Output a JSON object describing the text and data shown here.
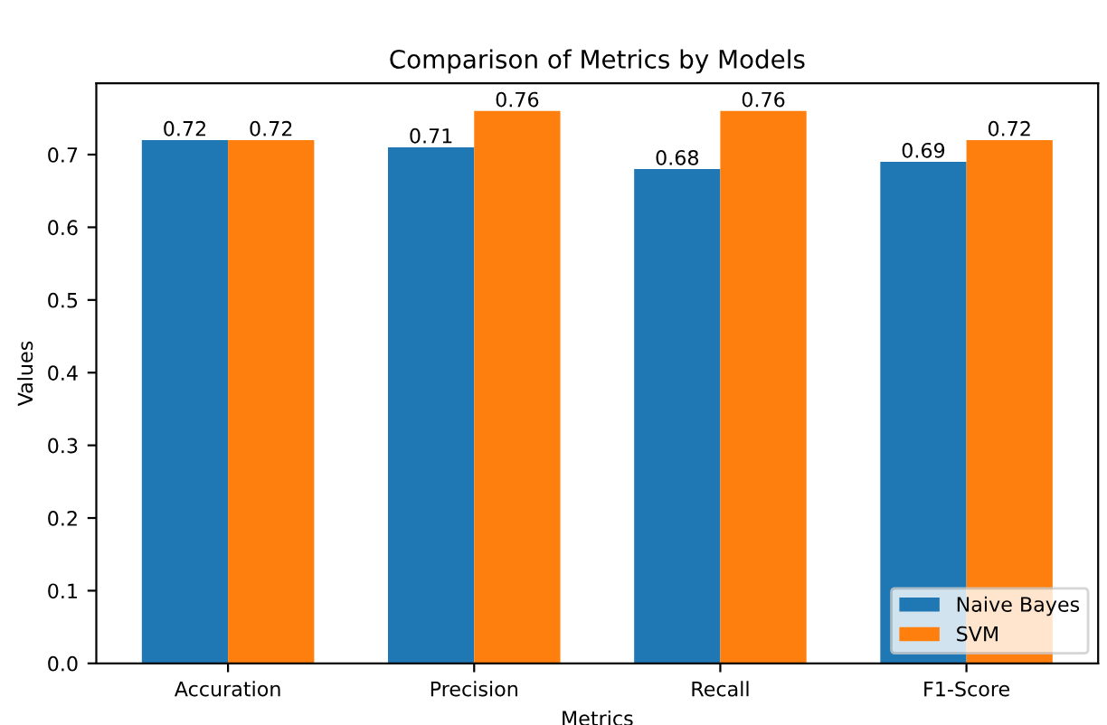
{
  "chart_data": {
    "type": "bar",
    "title": "Comparison of Metrics by Models",
    "xlabel": "Metrics",
    "ylabel": "Values",
    "categories": [
      "Accuration",
      "Precision",
      "Recall",
      "F1-Score"
    ],
    "series": [
      {
        "name": "Naive Bayes",
        "color": "#1f77b4",
        "values": [
          0.72,
          0.71,
          0.68,
          0.69
        ]
      },
      {
        "name": "SVM",
        "color": "#ff7f0e",
        "values": [
          0.72,
          0.76,
          0.76,
          0.72
        ]
      }
    ],
    "ylim": [
      0,
      0.798
    ],
    "yticks": [
      {
        "value": 0,
        "label": "0.0"
      },
      0.1,
      0.2,
      0.3,
      0.4,
      0.5,
      0.6,
      0.7
    ],
    "data_labels": true,
    "legend": "bottom right",
    "grid": false
  }
}
